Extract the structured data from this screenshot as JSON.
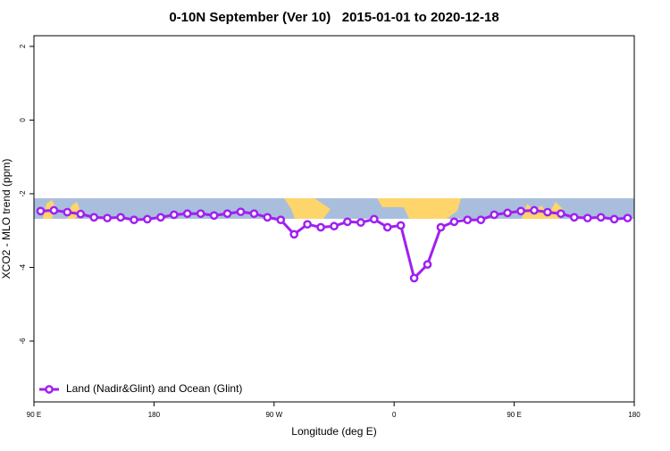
{
  "chart_data": {
    "type": "line",
    "title": "0-10N September (Ver 10)   2015-01-01 to 2020-12-18",
    "xlabel": "Longitude (deg E)",
    "ylabel": "XCO2 - MLO trend (ppm)",
    "x": [
      95,
      105,
      115,
      125,
      135,
      145,
      155,
      165,
      175,
      185,
      195,
      205,
      215,
      225,
      235,
      245,
      255,
      265,
      275,
      285,
      295,
      305,
      315,
      325,
      335,
      345,
      355,
      365,
      375,
      385,
      395,
      405,
      415,
      425,
      435,
      445,
      455,
      465,
      475,
      485,
      495,
      505,
      515,
      525,
      535
    ],
    "series": [
      {
        "name": "Land (Nadir&Glint) and Ocean (Glint)",
        "color": "#a020f0",
        "values": [
          -2.47,
          -2.45,
          -2.5,
          -2.55,
          -2.64,
          -2.66,
          -2.64,
          -2.71,
          -2.69,
          -2.64,
          -2.57,
          -2.54,
          -2.54,
          -2.59,
          -2.54,
          -2.49,
          -2.54,
          -2.64,
          -2.71,
          -3.1,
          -2.83,
          -2.91,
          -2.88,
          -2.76,
          -2.78,
          -2.69,
          -2.91,
          -2.86,
          -4.29,
          -3.92,
          -2.91,
          -2.76,
          -2.71,
          -2.71,
          -2.57,
          -2.52,
          -2.47,
          -2.45,
          -2.5,
          -2.54,
          -2.64,
          -2.66,
          -2.64,
          -2.69,
          -2.66
        ]
      }
    ],
    "xlim": [
      90,
      540
    ],
    "xticks": [
      {
        "value": 90,
        "label": "90 E"
      },
      180,
      {
        "value": 270,
        "label": "90 W"
      },
      {
        "value": 360,
        "label": "0"
      },
      {
        "value": 450,
        "label": "90 E"
      },
      {
        "value": 540,
        "label": "180"
      }
    ],
    "ylim": [
      2.29,
      -7.65
    ],
    "yticks": [
      2,
      0,
      -2,
      -4,
      -6
    ],
    "legend": "bottomleft"
  }
}
